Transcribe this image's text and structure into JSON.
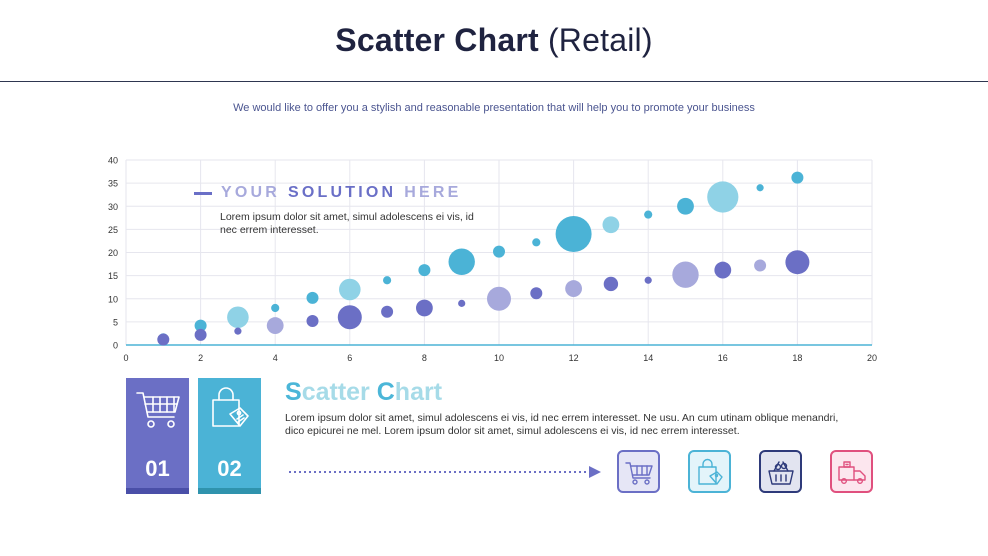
{
  "header": {
    "title_bold": "Scatter Chart",
    "title_light": "(Retail)",
    "subtitle": "We would like to offer you a stylish and reasonable presentation that will help you to promote your business"
  },
  "solution": {
    "word1": "YOUR",
    "word2": "SOLUTION",
    "word3": "HERE",
    "body": "Lorem ipsum dolor sit amet, simul adolescens ei vis, id nec errem interesset."
  },
  "cards": [
    {
      "number": "01",
      "icon": "shopping-cart-icon",
      "color": "#6b6fc5",
      "foot": "#4a4fa8"
    },
    {
      "number": "02",
      "icon": "shopping-bag-tag-icon",
      "color": "#4bb3d6",
      "foot": "#2f93ad"
    }
  ],
  "scatter": {
    "title_cap1": "S",
    "title_rest1": "catter ",
    "title_cap2": "C",
    "title_rest2": "hart",
    "body": "Lorem ipsum dolor sit amet, simul adolescens ei vis, id nec errem interesset. Ne usu. An cum utinam oblique menandri, dico epicurei ne mel. Lorem ipsum dolor sit amet, simul adolescens ei vis, id nec errem interesset."
  },
  "icon_boxes": [
    {
      "icon": "shopping-cart-icon",
      "color": "#6b6fc5",
      "fill": "#e6e6f6"
    },
    {
      "icon": "shopping-bag-icon",
      "color": "#4bb3d6",
      "fill": "#e3f4fa"
    },
    {
      "icon": "shopping-basket-icon",
      "color": "#2e3a7a",
      "fill": "#e2e4f0"
    },
    {
      "icon": "delivery-truck-icon",
      "color": "#e0507e",
      "fill": "#fce6ee"
    }
  ],
  "colors": {
    "series_top": "#4bb3d6",
    "series_bottom": "#6b6fc5"
  },
  "chart_data": {
    "type": "scatter",
    "title": "",
    "xlabel": "",
    "ylabel": "",
    "xlim": [
      0,
      20
    ],
    "ylim": [
      0,
      40
    ],
    "x_ticks": [
      0,
      2,
      4,
      6,
      8,
      10,
      12,
      14,
      16,
      18,
      20
    ],
    "y_ticks": [
      0,
      5,
      10,
      15,
      20,
      25,
      30,
      35,
      40
    ],
    "grid": true,
    "legend": "none",
    "bubble": true,
    "series": [
      {
        "color": "#4bb3d6",
        "points": [
          {
            "x": 1,
            "y": 1.5,
            "size": 1.5
          },
          {
            "x": 2,
            "y": 4.2,
            "size": 2
          },
          {
            "x": 3,
            "y": 6,
            "size": 4
          },
          {
            "x": 4,
            "y": 8,
            "size": 1.2
          },
          {
            "x": 5,
            "y": 10.2,
            "size": 2
          },
          {
            "x": 6,
            "y": 12,
            "size": 4
          },
          {
            "x": 7,
            "y": 14,
            "size": 1.2
          },
          {
            "x": 8,
            "y": 16.2,
            "size": 2
          },
          {
            "x": 9,
            "y": 18,
            "size": 5
          },
          {
            "x": 10,
            "y": 20.2,
            "size": 2
          },
          {
            "x": 11,
            "y": 22.2,
            "size": 1.2
          },
          {
            "x": 12,
            "y": 24,
            "size": 7
          },
          {
            "x": 13,
            "y": 26,
            "size": 3
          },
          {
            "x": 14,
            "y": 28.2,
            "size": 1.2
          },
          {
            "x": 15,
            "y": 30,
            "size": 3
          },
          {
            "x": 16,
            "y": 32,
            "size": 6
          },
          {
            "x": 17,
            "y": 34,
            "size": 1
          },
          {
            "x": 18,
            "y": 36.2,
            "size": 2
          }
        ]
      },
      {
        "color": "#6b6fc5",
        "points": [
          {
            "x": 1,
            "y": 1.2,
            "size": 2
          },
          {
            "x": 2,
            "y": 2.2,
            "size": 2
          },
          {
            "x": 3,
            "y": 3,
            "size": 1
          },
          {
            "x": 4,
            "y": 4.2,
            "size": 3
          },
          {
            "x": 5,
            "y": 5.2,
            "size": 2
          },
          {
            "x": 6,
            "y": 6,
            "size": 4.5
          },
          {
            "x": 7,
            "y": 7.2,
            "size": 2
          },
          {
            "x": 8,
            "y": 8,
            "size": 3
          },
          {
            "x": 9,
            "y": 9,
            "size": 1
          },
          {
            "x": 10,
            "y": 10,
            "size": 4.5
          },
          {
            "x": 11,
            "y": 11.2,
            "size": 2
          },
          {
            "x": 12,
            "y": 12.2,
            "size": 3
          },
          {
            "x": 13,
            "y": 13.2,
            "size": 2.5
          },
          {
            "x": 14,
            "y": 14,
            "size": 1
          },
          {
            "x": 15,
            "y": 15.2,
            "size": 5
          },
          {
            "x": 16,
            "y": 16.2,
            "size": 3
          },
          {
            "x": 17,
            "y": 17.2,
            "size": 2
          },
          {
            "x": 18,
            "y": 17.9,
            "size": 4.5
          }
        ]
      }
    ]
  }
}
